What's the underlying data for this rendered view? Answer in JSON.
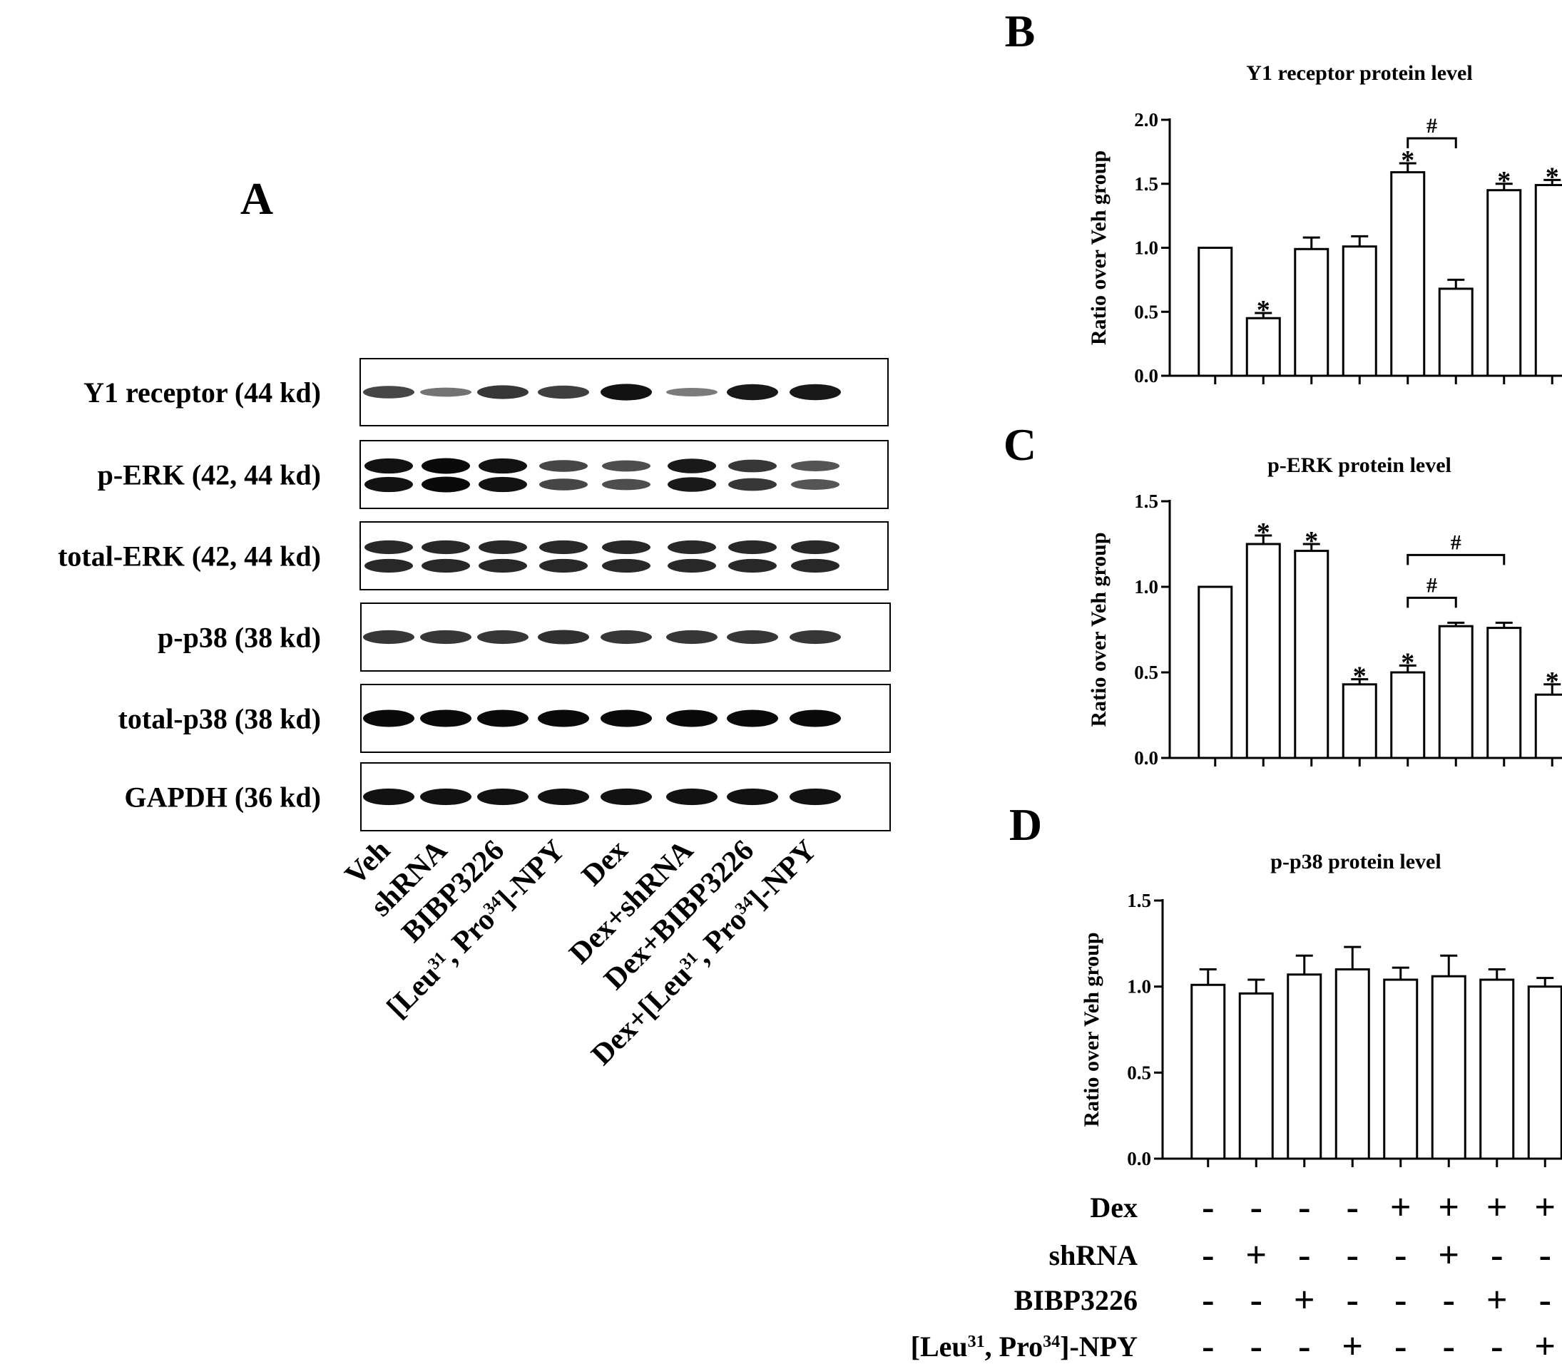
{
  "panels": {
    "a": "A",
    "b": "B",
    "c": "C",
    "d": "D"
  },
  "blot": {
    "rows": [
      {
        "label": "Y1 receptor (44 kd)",
        "intensity": [
          0.6,
          0.3,
          0.7,
          0.65,
          0.95,
          0.25,
          0.9,
          0.9
        ],
        "double": false
      },
      {
        "label": "p-ERK (42, 44 kd)",
        "intensity": [
          0.95,
          1.0,
          0.95,
          0.6,
          0.55,
          0.9,
          0.7,
          0.5
        ],
        "double": true
      },
      {
        "label": "total-ERK (42, 44 kd)",
        "intensity": [
          0.8,
          0.8,
          0.8,
          0.8,
          0.8,
          0.8,
          0.8,
          0.8
        ],
        "double": true
      },
      {
        "label": "p-p38 (38 kd)",
        "intensity": [
          0.7,
          0.7,
          0.7,
          0.75,
          0.7,
          0.7,
          0.7,
          0.7
        ],
        "double": false
      },
      {
        "label": "total-p38 (38 kd)",
        "intensity": [
          1.0,
          1.0,
          1.0,
          1.0,
          1.0,
          1.0,
          1.0,
          1.0
        ],
        "double": false
      },
      {
        "label": "GAPDH (36 kd)",
        "intensity": [
          0.95,
          0.95,
          0.95,
          0.95,
          0.95,
          0.95,
          0.95,
          0.95
        ],
        "double": false
      }
    ],
    "lanes": [
      {
        "pre": "Veh"
      },
      {
        "pre": "shRNA"
      },
      {
        "pre": "BIBP3226"
      },
      {
        "pre": "[Leu",
        "s1": "31",
        "mid": ", Pro",
        "s2": "34",
        "post": "]-NPY"
      },
      {
        "pre": "Dex"
      },
      {
        "pre": "Dex+shRNA"
      },
      {
        "pre": "Dex+BIBP3226"
      },
      {
        "pre": "Dex+[Leu",
        "s1": "31",
        "mid": ", Pro",
        "s2": "34",
        "post": "]-NPY"
      }
    ]
  },
  "chart_data": [
    {
      "type": "bar",
      "title": "Y1 receptor protein level",
      "ylabel": "Ratio over Veh group",
      "ylim": [
        0,
        2.0
      ],
      "yticks": [
        "0.0",
        "0.5",
        "1.0",
        "1.5",
        "2.0"
      ],
      "values": [
        1.0,
        0.45,
        0.99,
        1.01,
        1.59,
        0.68,
        1.45,
        1.49
      ],
      "errors": [
        0,
        0.04,
        0.09,
        0.08,
        0.07,
        0.07,
        0.05,
        0.04
      ],
      "stars": [
        "",
        "*",
        "",
        "",
        "*",
        "",
        "*",
        "*"
      ],
      "brackets": [
        {
          "from": 4,
          "to": 5,
          "label": "#"
        }
      ]
    },
    {
      "type": "bar",
      "title": "p-ERK protein level",
      "ylabel": "Ratio over Veh group",
      "ylim": [
        0,
        1.5
      ],
      "yticks": [
        "0.0",
        "0.5",
        "1.0",
        "1.5"
      ],
      "values": [
        1.0,
        1.25,
        1.21,
        0.43,
        0.5,
        0.77,
        0.76,
        0.37
      ],
      "errors": [
        0,
        0.05,
        0.04,
        0.03,
        0.04,
        0.02,
        0.03,
        0.06
      ],
      "stars": [
        "",
        "*",
        "*",
        "*",
        "*",
        "",
        "",
        "*"
      ],
      "brackets": [
        {
          "from": 4,
          "to": 5,
          "label": "#"
        },
        {
          "from": 4,
          "to": 6,
          "label": "#"
        }
      ]
    },
    {
      "type": "bar",
      "title": "p-p38 protein level",
      "ylabel": "Ratio over Veh group",
      "ylim": [
        0,
        1.5
      ],
      "yticks": [
        "0.0",
        "0.5",
        "1.0",
        "1.5"
      ],
      "values": [
        1.01,
        0.96,
        1.07,
        1.1,
        1.04,
        1.06,
        1.04,
        1.0
      ],
      "errors": [
        0.09,
        0.08,
        0.11,
        0.13,
        0.07,
        0.12,
        0.06,
        0.05
      ],
      "stars": [
        "",
        "",
        "",
        "",
        "",
        "",
        "",
        ""
      ],
      "brackets": []
    }
  ],
  "treatment_table": {
    "rows": [
      {
        "pre": "Dex",
        "marks": [
          "-",
          "-",
          "-",
          "-",
          "+",
          "+",
          "+",
          "+"
        ]
      },
      {
        "pre": "shRNA",
        "marks": [
          "-",
          "+",
          "-",
          "-",
          "-",
          "+",
          "-",
          "-"
        ]
      },
      {
        "pre": "BIBP3226",
        "marks": [
          "-",
          "-",
          "+",
          "-",
          "-",
          "-",
          "+",
          "-"
        ]
      },
      {
        "pre": "[Leu",
        "s1": "31",
        "mid": ", Pro",
        "s2": "34",
        "post": "]-NPY",
        "marks": [
          "-",
          "-",
          "-",
          "+",
          "-",
          "-",
          "-",
          "+"
        ]
      }
    ]
  }
}
